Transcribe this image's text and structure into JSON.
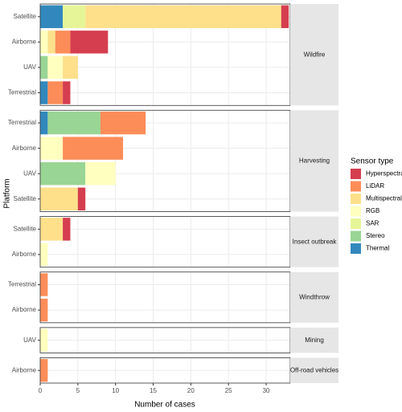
{
  "chart_data": {
    "type": "bar",
    "orientation": "horizontal",
    "stacked": true,
    "x_label": "Number of cases",
    "y_label": "Platform",
    "legend_title": "Sensor type",
    "legend_position": "right",
    "grid": true,
    "xlim": [
      0,
      33.2
    ],
    "xticks": [
      0,
      5,
      10,
      15,
      20,
      25,
      30
    ],
    "series": [
      {
        "name": "Hyperspectral",
        "color": "#D53E4F"
      },
      {
        "name": "LiDAR",
        "color": "#FC8D59"
      },
      {
        "name": "Multispectral",
        "color": "#FEE08B"
      },
      {
        "name": "RGB",
        "color": "#FFFFBF"
      },
      {
        "name": "SAR",
        "color": "#E6F598"
      },
      {
        "name": "Stereo",
        "color": "#99D594"
      },
      {
        "name": "Thermal",
        "color": "#3288BD"
      }
    ],
    "facets": [
      {
        "label": "Wildfire",
        "categories": [
          "Satellite",
          "Airborne",
          "UAV",
          "Terrestrial"
        ],
        "values": [
          [
            1,
            5,
            null,
            1
          ],
          [
            null,
            2,
            null,
            2
          ],
          [
            26,
            1,
            2,
            null
          ],
          [
            null,
            1,
            2,
            null
          ],
          [
            3,
            null,
            null,
            null
          ],
          [
            null,
            null,
            1,
            null
          ],
          [
            3,
            null,
            null,
            1
          ]
        ]
      },
      {
        "label": "Harvesting",
        "categories": [
          "Terrestrial",
          "Airborne",
          "UAV",
          "Satellite"
        ],
        "values": [
          [
            null,
            null,
            null,
            1
          ],
          [
            6,
            8,
            null,
            null
          ],
          [
            null,
            null,
            null,
            5
          ],
          [
            null,
            3,
            4,
            null
          ],
          [
            null,
            null,
            null,
            null
          ],
          [
            7,
            null,
            6,
            null
          ],
          [
            1,
            null,
            null,
            null
          ]
        ]
      },
      {
        "label": "Insect outbreak",
        "categories": [
          "Satellite",
          "Airborne"
        ],
        "values": [
          [
            1,
            null
          ],
          [
            null,
            null
          ],
          [
            3,
            null
          ],
          [
            null,
            1
          ],
          [
            null,
            null
          ],
          [
            null,
            null
          ],
          [
            null,
            null
          ]
        ]
      },
      {
        "label": "Windthrow",
        "categories": [
          "Terrestrial",
          "Airborne"
        ],
        "values": [
          [
            null,
            null
          ],
          [
            1,
            1
          ],
          [
            null,
            null
          ],
          [
            null,
            null
          ],
          [
            null,
            null
          ],
          [
            null,
            null
          ],
          [
            null,
            null
          ]
        ]
      },
      {
        "label": "Mining",
        "categories": [
          "UAV"
        ],
        "values": [
          [
            null
          ],
          [
            null
          ],
          [
            null
          ],
          [
            1
          ],
          [
            null
          ],
          [
            null
          ],
          [
            null
          ]
        ]
      },
      {
        "label": "Off-road vehicles",
        "categories": [
          "Airborne"
        ],
        "values": [
          [
            null
          ],
          [
            1
          ],
          [
            null
          ],
          [
            null
          ],
          [
            null
          ],
          [
            null
          ],
          [
            null
          ]
        ]
      }
    ]
  }
}
